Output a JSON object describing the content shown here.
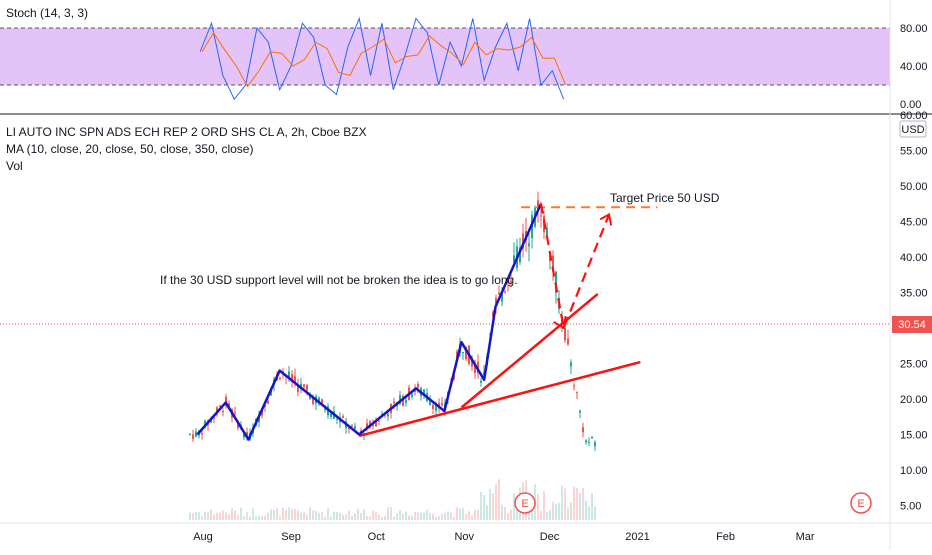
{
  "header": {
    "stoch_label": "Stoch (14, 3, 3)",
    "symbol_title": "LI AUTO INC SPN ADS ECH REP 2 ORD SHS CL A, 2h, Cboe BZX",
    "ma_label": "MA (10, close, 20, close, 50, close, 350, close)",
    "vol_label": "Vol"
  },
  "price_axis": {
    "currency": "USD",
    "ticks": [
      "60.00",
      "55.00",
      "50.00",
      "45.00",
      "40.00",
      "35.00",
      "30.00",
      "25.00",
      "20.00",
      "15.00",
      "10.00",
      "5.00"
    ],
    "current_price": "30.54"
  },
  "stoch_axis": {
    "ticks": [
      "80.00",
      "40.00",
      "0.00"
    ]
  },
  "time_axis": {
    "ticks": [
      "Aug",
      "Sep",
      "Oct",
      "Nov",
      "Dec",
      "2021",
      "Feb",
      "Mar"
    ]
  },
  "annotations": {
    "target_text": "Target Price 50 USD",
    "idea_text": "If the 30 USD support level will not be broken the idea is to go long.",
    "earnings_marker": "E"
  },
  "colors": {
    "stoch_band": "#e1bef7",
    "zigzag": "#1515c8",
    "trendline": "#ff1010",
    "target_line": "#f57c2a",
    "up_candle": "#26a69a",
    "down_candle": "#ef5350",
    "price_badge": "#ef5350"
  },
  "chart_data": [
    {
      "type": "line",
      "series_kind": "stochastic oscillator",
      "ylim": [
        0,
        100
      ],
      "bands": [
        20,
        80
      ],
      "x": [
        "Jul 31",
        "Aug 4",
        "Aug 8",
        "Aug 12",
        "Aug 16",
        "Aug 20",
        "Aug 24",
        "Aug 28",
        "Sep 1",
        "Sep 5",
        "Sep 9",
        "Sep 13",
        "Sep 17",
        "Sep 21",
        "Sep 25",
        "Sep 29",
        "Oct 3",
        "Oct 7",
        "Oct 11",
        "Oct 15",
        "Oct 19",
        "Oct 23",
        "Oct 27",
        "Oct 31",
        "Nov 4",
        "Nov 8",
        "Nov 12",
        "Nov 16",
        "Nov 20",
        "Nov 24",
        "Nov 28",
        "Dec 2",
        "Dec 6"
      ],
      "series": [
        {
          "values": [
            55,
            85,
            30,
            5,
            20,
            80,
            65,
            15,
            40,
            85,
            70,
            20,
            10,
            60,
            90,
            30,
            85,
            15,
            50,
            90,
            75,
            20,
            65,
            40,
            90,
            25,
            60,
            85,
            35,
            90,
            20,
            35,
            5
          ]
        }
      ]
    },
    {
      "type": "line",
      "series_kind": "price path (zigzag annotation)",
      "ylim": [
        2,
        62
      ],
      "x": [
        "Jul 30",
        "Aug 9",
        "Aug 17",
        "Aug 28",
        "Sep 25",
        "Oct 15",
        "Oct 25",
        "Oct 31",
        "Nov 8",
        "Nov 12",
        "Nov 28"
      ],
      "series": [
        {
          "values": [
            15,
            19.5,
            14.3,
            24,
            15,
            21.5,
            18.3,
            28,
            22.7,
            33,
            47.5
          ]
        }
      ]
    },
    {
      "type": "line",
      "series_kind": "projection (dashed arrows)",
      "x": [
        "Nov 28",
        "Dec 6",
        "Dec 22"
      ],
      "series": [
        {
          "values": [
            47.5,
            30,
            46
          ]
        }
      ]
    },
    {
      "type": "line",
      "series_kind": "trendlines",
      "series": [
        {
          "x": [
            "Sep 25",
            "Jan 2"
          ],
          "values": [
            14.8,
            25.2
          ]
        },
        {
          "x": [
            "Oct 31",
            "Dec 18"
          ],
          "values": [
            18.8,
            34.8
          ]
        }
      ]
    },
    {
      "type": "line",
      "series_kind": "target level",
      "x": [
        "Nov 21",
        "Jan 8"
      ],
      "series": [
        {
          "values": [
            47,
            47
          ]
        }
      ]
    }
  ]
}
